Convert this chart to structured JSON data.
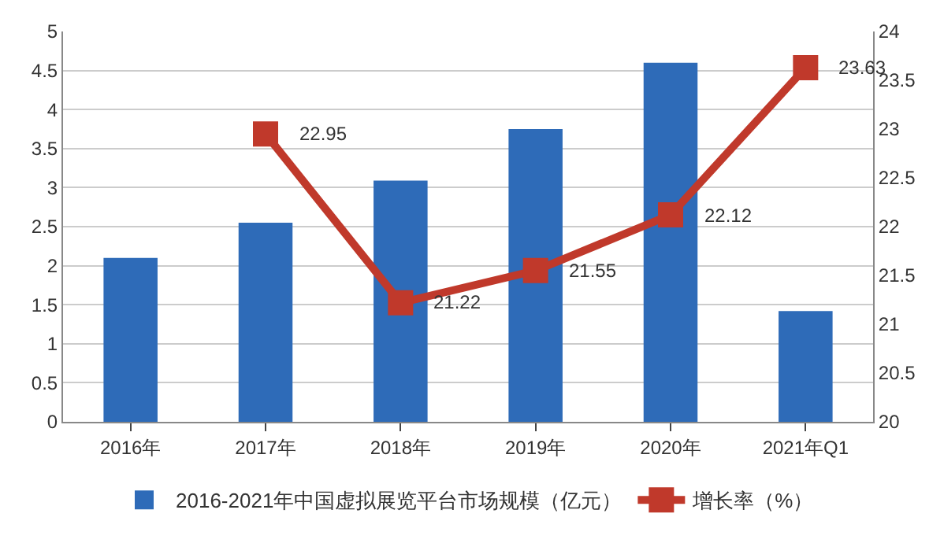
{
  "chart_data": {
    "type": "bar",
    "categories": [
      "2016年",
      "2017年",
      "2018年",
      "2019年",
      "2020年",
      "2021年Q1"
    ],
    "series": [
      {
        "name": "2016-2021年中国虚拟展览平台市场规模（亿元）",
        "color": "#2e6bb8",
        "values": [
          2.1,
          2.55,
          3.09,
          3.75,
          4.6,
          1.42
        ]
      },
      {
        "name": "增长率（%）",
        "type": "line",
        "axis": "y2",
        "color": "#c0392b",
        "marker": "square",
        "values": [
          null,
          22.95,
          21.22,
          21.55,
          22.12,
          23.63
        ],
        "value_labels": [
          null,
          "22.95",
          "21.22",
          "21.55",
          "22.12",
          "23.63"
        ]
      }
    ],
    "ylim": [
      0,
      5
    ],
    "yticks": [
      0,
      0.5,
      1,
      1.5,
      2,
      2.5,
      3,
      3.5,
      4,
      4.5,
      5
    ],
    "y2lim": [
      20,
      24
    ],
    "y2ticks": [
      20,
      20.5,
      21,
      21.5,
      22,
      22.5,
      23,
      23.5,
      24
    ],
    "grid": "y",
    "legend": "bottom"
  }
}
